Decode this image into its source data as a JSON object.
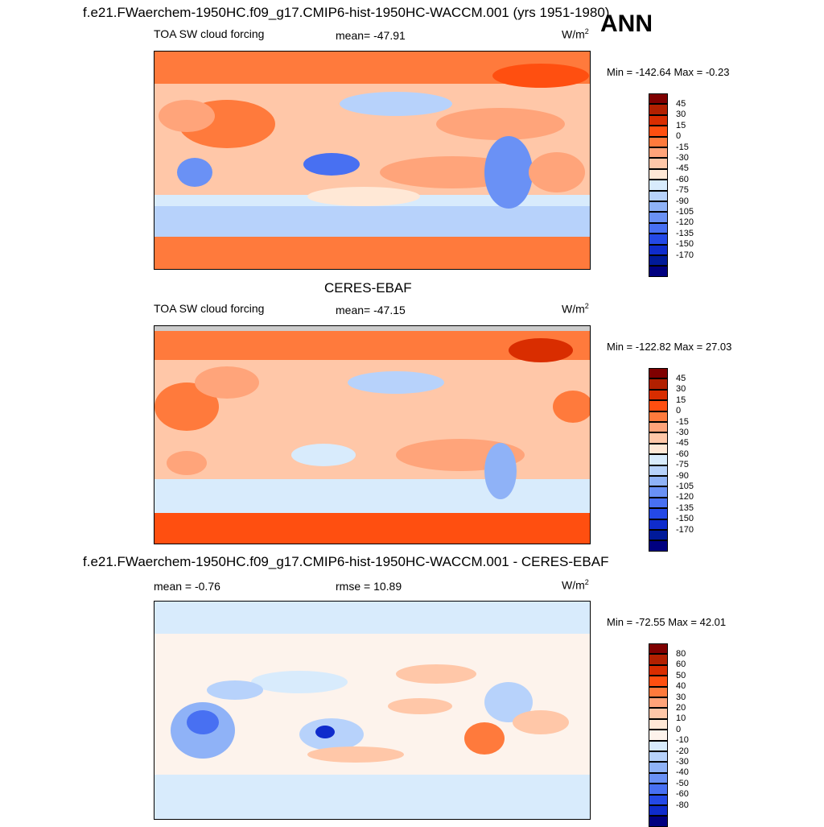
{
  "header": {
    "title_top": "f.e21.FWaerchem-1950HC.f09_g17.CMIP6-hist-1950HC-WACCM.001 (yrs 1951-1980)",
    "season": "ANN"
  },
  "panels": [
    {
      "id": "model",
      "label_left": "TOA SW cloud forcing",
      "mean": "mean= -47.91",
      "units": "W/m",
      "units_sup": "2",
      "minmax": "Min = -142.64 Max =  -0.23",
      "palette": [
        "#7f0000",
        "#b22000",
        "#d92d00",
        "#ff4f10",
        "#ff7a3c",
        "#ffa47a",
        "#ffc7a8",
        "#ffe8d6",
        "#d8ebfc",
        "#b7d2fb",
        "#8fb2f7",
        "#6a91f5",
        "#4870f2",
        "#2449e6",
        "#0f2ccc",
        "#001a99",
        "#000080"
      ],
      "ticks": [
        "45",
        "30",
        "15",
        "0",
        "-15",
        "-30",
        "-45",
        "-60",
        "-75",
        "-90",
        "-105",
        "-120",
        "-135",
        "-150",
        "-170"
      ]
    },
    {
      "id": "obs",
      "title": "CERES-EBAF",
      "label_left": "TOA SW cloud forcing",
      "mean": "mean= -47.15",
      "units": "W/m",
      "units_sup": "2",
      "minmax": "Min = -122.82 Max =  27.03",
      "palette": [
        "#7f0000",
        "#b22000",
        "#d92d00",
        "#ff4f10",
        "#ff7a3c",
        "#ffa47a",
        "#ffc7a8",
        "#ffe8d6",
        "#d8ebfc",
        "#b7d2fb",
        "#8fb2f7",
        "#6a91f5",
        "#4870f2",
        "#2449e6",
        "#0f2ccc",
        "#001a99",
        "#000080"
      ],
      "ticks": [
        "45",
        "30",
        "15",
        "0",
        "-15",
        "-30",
        "-45",
        "-60",
        "-75",
        "-90",
        "-105",
        "-120",
        "-135",
        "-150",
        "-170"
      ]
    },
    {
      "id": "diff",
      "title": "f.e21.FWaerchem-1950HC.f09_g17.CMIP6-hist-1950HC-WACCM.001 - CERES-EBAF",
      "label_left": "mean =  -0.76",
      "mean": "rmse =  10.89",
      "units": "W/m",
      "units_sup": "2",
      "minmax": "Min = -72.55 Max =  42.01",
      "palette": [
        "#7f0000",
        "#b22000",
        "#d92d00",
        "#ff4f10",
        "#ff7a3c",
        "#ffa47a",
        "#ffc7a8",
        "#ffe8d6",
        "#fdf3ec",
        "#d8ebfc",
        "#b7d2fb",
        "#8fb2f7",
        "#6a91f5",
        "#4870f2",
        "#2449e6",
        "#0f2ccc",
        "#000080"
      ],
      "ticks": [
        "80",
        "60",
        "50",
        "40",
        "30",
        "20",
        "10",
        "0",
        "-10",
        "-20",
        "-30",
        "-40",
        "-50",
        "-60",
        "-80"
      ]
    }
  ]
}
